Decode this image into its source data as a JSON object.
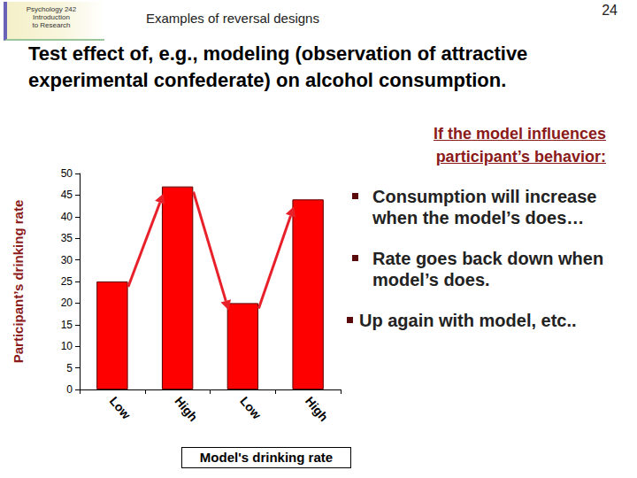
{
  "slide": {
    "course": [
      "Psychology 242",
      "Introduction",
      "to Research"
    ],
    "heading": "Examples of reversal designs",
    "page": "24",
    "title": "Test effect of, e.g., modeling (observation of attractive experimental confederate) on alcohol consumption.",
    "note_heading": [
      "If the model influences",
      "participant’s behavior:"
    ],
    "bullets": [
      "Consumption will increase when the model’s does…",
      "Rate goes back down when model’s does.",
      "Up again with model, etc.."
    ]
  },
  "chart_data": {
    "type": "bar",
    "categories": [
      "Low",
      "High",
      "Low",
      "High"
    ],
    "values": [
      25,
      47,
      20,
      44
    ],
    "color": "#ff0000",
    "x_label": "Model's drinking rate",
    "y_label": "Participant’s drinking rate",
    "ylim": [
      0,
      50
    ],
    "yticks": [
      0,
      5,
      10,
      15,
      20,
      25,
      30,
      35,
      40,
      45,
      50
    ],
    "grid": false
  }
}
